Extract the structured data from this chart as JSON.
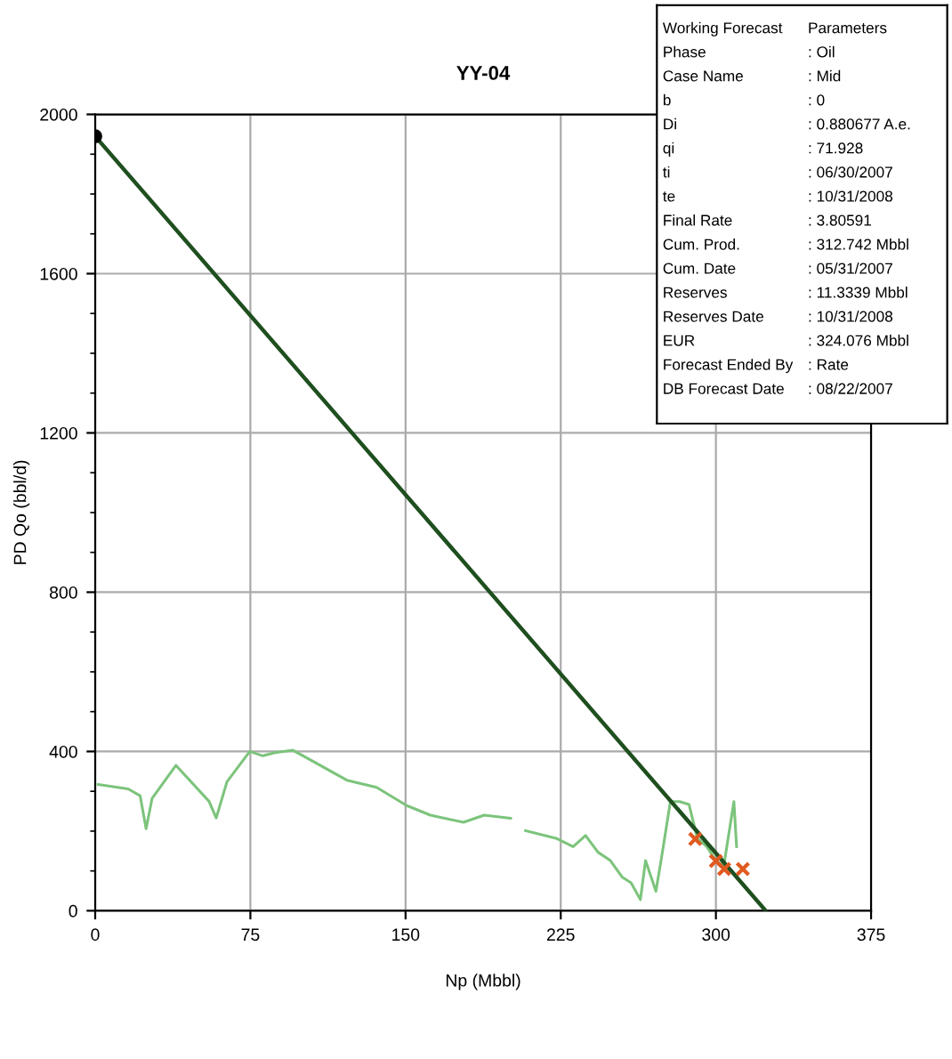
{
  "chart_data": {
    "type": "line",
    "title": "YY-04",
    "xlabel": "Np (Mbbl)",
    "ylabel": "PD Qo (bbl/d)",
    "xlim": [
      0,
      375
    ],
    "xticks": [
      0,
      75,
      150,
      225,
      300,
      375
    ],
    "ylim": [
      0,
      2000
    ],
    "yticks": [
      0,
      400,
      800,
      1200,
      1600,
      2000
    ],
    "grid": true,
    "series": [
      {
        "color": "#7cc47c",
        "x": [
          1.4,
          15.9,
          21.7,
          24.6,
          27.5,
          39,
          55,
          58.5,
          63.7,
          74.7,
          81,
          86.9,
          95.6,
          104,
          121.6,
          136,
          150.6,
          162,
          178,
          188,
          200.8,
          null,
          208,
          222.7,
          231,
          237,
          243,
          249,
          254.8,
          259,
          263.5,
          266,
          271,
          273.7,
          278,
          282.5,
          287,
          291,
          295.6,
          300,
          303.8,
          308.7,
          310
        ],
        "values": [
          317,
          306,
          289,
          206,
          282,
          365,
          275,
          233,
          324,
          400,
          389,
          397,
          403,
          379,
          328,
          310,
          264,
          240,
          222,
          240,
          232,
          null,
          201,
          182,
          161,
          189,
          147,
          126,
          84,
          70,
          28,
          126,
          49,
          133,
          274,
          274,
          267,
          182,
          161,
          126,
          112,
          274,
          161
        ]
      },
      {
        "color": "#1f4f1f",
        "x": [
          0,
          324.076
        ],
        "values": [
          1945,
          0
        ]
      },
      {
        "type": "scatter",
        "color": "#e05a20",
        "marker": "cross",
        "x": [
          290,
          300,
          304,
          313
        ],
        "values": [
          180,
          125,
          105,
          105
        ]
      },
      {
        "type": "scatter",
        "color": "#000000",
        "marker": "circle",
        "x": [
          0
        ],
        "values": [
          1945
        ]
      }
    ],
    "annotations": [
      "Working Forecast",
      "Parameters",
      "Phase",
      ": Oil",
      "Case Name",
      ": Mid",
      "b",
      ": 0",
      "Di",
      ": 0.880677 A.e.",
      "qi",
      ": 71.928",
      "ti",
      ": 06/30/2007",
      "te",
      ": 10/31/2008",
      "Final Rate",
      ": 3.80591",
      "Cum. Prod.",
      ": 312.742 Mbbl",
      "Cum. Date",
      ": 05/31/2007",
      "Reserves",
      ": 11.3339 Mbbl",
      "Reserves Date",
      ": 10/31/2008",
      "EUR",
      ": 324.076 Mbbl",
      "Forecast Ended By",
      ": Rate",
      "DB Forecast Date",
      ": 08/22/2007"
    ]
  }
}
